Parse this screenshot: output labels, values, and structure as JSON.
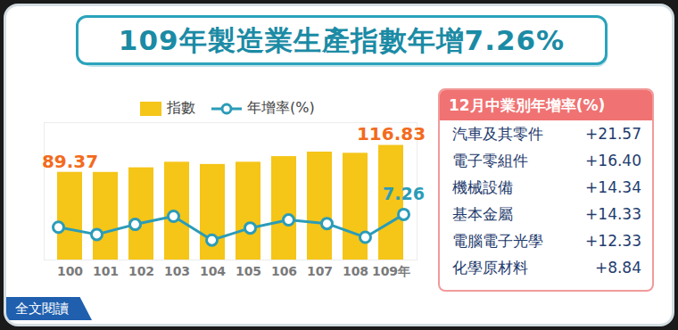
{
  "chart_data": {
    "type": "bar",
    "title": "109年製造業生產指數年增7.26%",
    "categories": [
      "100",
      "101",
      "102",
      "103",
      "104",
      "105",
      "106",
      "107",
      "108",
      "109年"
    ],
    "series": [
      {
        "name": "指數",
        "type": "bar",
        "color": "#f5c518",
        "values": [
          89.37,
          89.3,
          94.0,
          99.7,
          97.4,
          99.7,
          105.4,
          110.0,
          108.8,
          116.83
        ],
        "value_labels": [
          "89.37",
          null,
          null,
          null,
          null,
          null,
          null,
          null,
          null,
          "116.83"
        ]
      },
      {
        "name": "年增率(%)",
        "type": "line",
        "axis": "y2",
        "color": "#2b9cb8",
        "marker": "circle",
        "values": [
          2.7,
          0.1,
          3.7,
          6.6,
          -1.9,
          2.4,
          5.3,
          4.0,
          -0.9,
          7.26
        ],
        "value_labels": [
          null,
          null,
          null,
          null,
          null,
          null,
          null,
          null,
          null,
          "7.26"
        ]
      }
    ],
    "ylim": [
      0,
      140
    ],
    "y2lim": [
      -9,
      40
    ],
    "tick_labels": "x",
    "data_labels": true,
    "legend": "top-left"
  },
  "panel": {
    "title": "12月中業別年增率(%)",
    "rows": [
      [
        "汽車及其零件",
        "+21.57"
      ],
      [
        "電子零組件",
        "+16.40"
      ],
      [
        "機械設備",
        "+14.34"
      ],
      [
        "基本金屬",
        "+14.33"
      ],
      [
        "電腦電子光學",
        "+12.33"
      ],
      [
        "化學原材料",
        "+8.84"
      ]
    ]
  },
  "link": "全文閱讀"
}
